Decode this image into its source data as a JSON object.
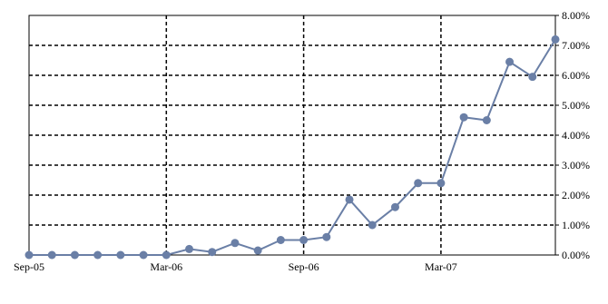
{
  "chart_data": {
    "type": "line",
    "title": "",
    "xlabel": "",
    "ylabel": "",
    "y_axis_position": "right",
    "grid": "dashed",
    "legend": "none",
    "x_tick_labels": [
      "Sep-05",
      "Mar-06",
      "Sep-06",
      "Mar-07"
    ],
    "x_tick_index": [
      0,
      6,
      12,
      18
    ],
    "y_tick_labels": [
      "0.00%",
      "1.00%",
      "2.00%",
      "3.00%",
      "4.00%",
      "5.00%",
      "6.00%",
      "7.00%",
      "8.00%"
    ],
    "ylim": [
      0,
      8
    ],
    "x_count": 24,
    "series": [
      {
        "color": "#6a7fa6",
        "values": [
          0.0,
          0.0,
          0.0,
          0.0,
          0.0,
          0.0,
          0.0,
          0.2,
          0.1,
          0.4,
          0.15,
          0.5,
          0.5,
          0.6,
          1.85,
          1.0,
          1.6,
          2.4,
          2.4,
          4.6,
          4.5,
          6.45,
          5.95,
          7.2
        ]
      }
    ]
  }
}
